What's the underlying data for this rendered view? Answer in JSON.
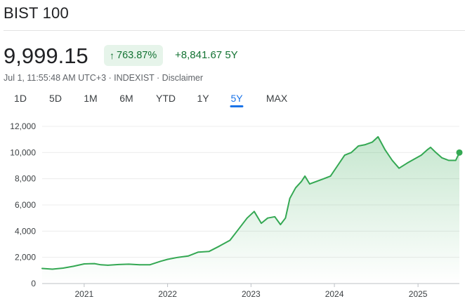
{
  "header": {
    "title": "BIST 100"
  },
  "quote": {
    "price": "9,999.15",
    "change_percent": "763.87%",
    "change_value": "+8,841.67",
    "period": "5Y",
    "direction": "up",
    "timestamp": "Jul 1, 11:55:48 AM UTC+3",
    "exchange": "INDEXIST",
    "disclaimer": "Disclaimer"
  },
  "ranges": [
    "1D",
    "5D",
    "1M",
    "6M",
    "YTD",
    "1Y",
    "5Y",
    "MAX"
  ],
  "active_range": "5Y",
  "colors": {
    "positive": "#137333",
    "line": "#34a853",
    "accent": "#1a73e8"
  },
  "chart_data": {
    "type": "area",
    "title": "",
    "xlabel": "",
    "ylabel": "",
    "ylim": [
      0,
      12000
    ],
    "y_ticks": [
      "0",
      "2,000",
      "4,000",
      "6,000",
      "8,000",
      "10,000",
      "12,000"
    ],
    "x_ticks": [
      "2021",
      "2022",
      "2023",
      "2024",
      "2025"
    ],
    "grid": true,
    "series": [
      {
        "x": [
          "2020-07-01",
          "2020-08-15",
          "2020-10-01",
          "2020-11-15",
          "2021-01-01",
          "2021-02-15",
          "2021-03-15",
          "2021-04-15",
          "2021-06-01",
          "2021-07-15",
          "2021-09-01",
          "2021-10-15",
          "2021-12-01",
          "2022-01-01",
          "2022-02-15",
          "2022-04-01",
          "2022-05-15",
          "2022-07-01",
          "2022-08-15",
          "2022-10-01",
          "2022-11-01",
          "2022-12-15",
          "2023-01-15",
          "2023-02-15",
          "2023-03-15",
          "2023-04-15",
          "2023-05-10",
          "2023-06-01",
          "2023-06-20",
          "2023-07-15",
          "2023-08-10",
          "2023-08-25",
          "2023-09-15",
          "2023-10-15",
          "2023-11-15",
          "2023-12-15",
          "2024-01-15",
          "2024-02-15",
          "2024-03-15",
          "2024-04-15",
          "2024-05-15",
          "2024-06-15",
          "2024-07-10",
          "2024-08-10",
          "2024-09-10",
          "2024-10-10",
          "2024-11-15",
          "2024-12-15",
          "2025-01-15",
          "2025-02-10",
          "2025-02-25",
          "2025-03-20",
          "2025-04-15",
          "2025-05-15",
          "2025-06-15",
          "2025-07-01"
        ],
        "y": [
          1150,
          1100,
          1180,
          1320,
          1500,
          1520,
          1430,
          1400,
          1450,
          1480,
          1430,
          1430,
          1700,
          1850,
          2000,
          2100,
          2400,
          2450,
          2850,
          3300,
          4000,
          5000,
          5500,
          4600,
          5000,
          5100,
          4500,
          5000,
          6500,
          7300,
          7800,
          8200,
          7600,
          7800,
          8000,
          8200,
          9000,
          9800,
          10000,
          10500,
          10600,
          10800,
          11200,
          10200,
          9400,
          8800,
          9200,
          9500,
          9800,
          10200,
          10400,
          10000,
          9600,
          9400,
          9400,
          9999
        ]
      }
    ]
  }
}
